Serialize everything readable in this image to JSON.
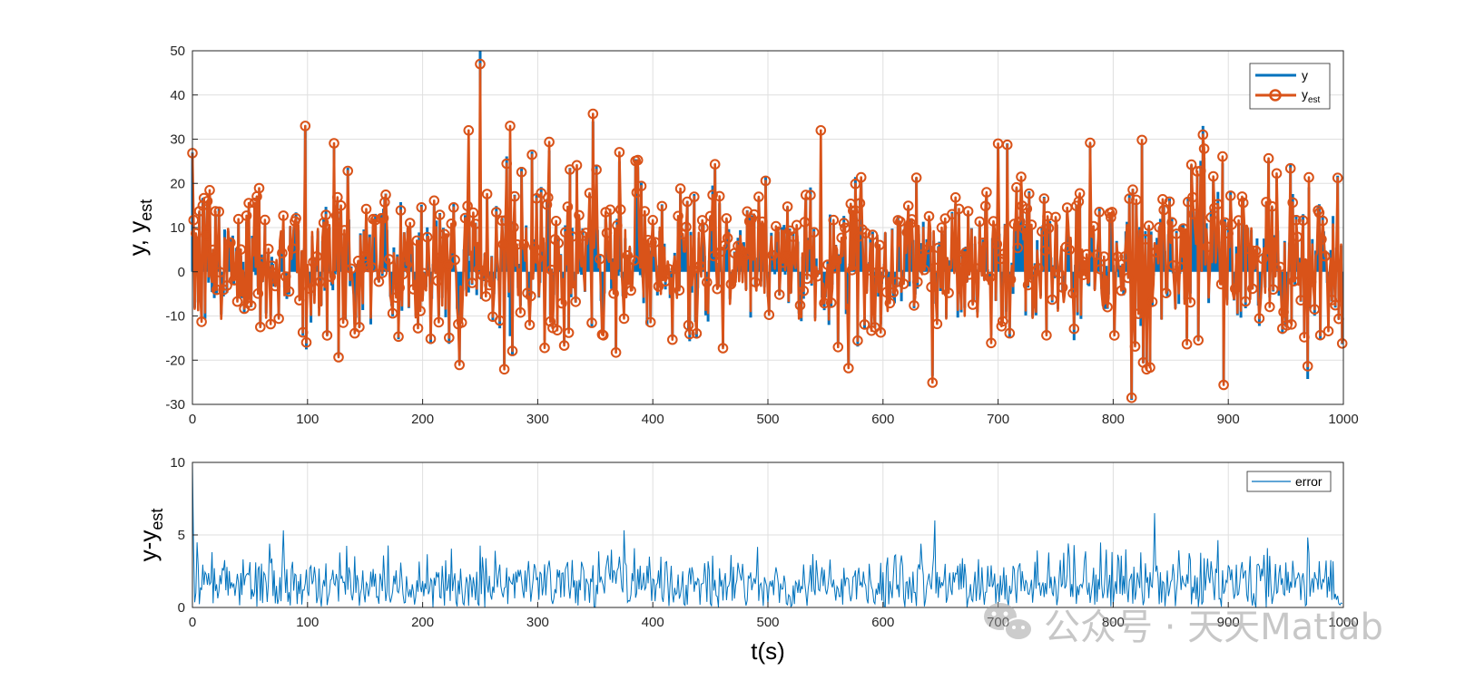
{
  "chart_data": [
    {
      "type": "line",
      "ylabel": "y, y",
      "ylabel_sub": "est",
      "xlim": [
        0,
        1000
      ],
      "ylim": [
        -30,
        50
      ],
      "xticks": [
        0,
        100,
        200,
        300,
        400,
        500,
        600,
        700,
        800,
        900,
        1000
      ],
      "yticks": [
        -30,
        -20,
        -10,
        0,
        10,
        20,
        30,
        40,
        50
      ],
      "grid": true,
      "legend_position": "top-right",
      "legend": [
        {
          "label": "y",
          "sub": ""
        },
        {
          "label": "y",
          "sub": "est"
        }
      ],
      "series": [
        {
          "name": "y",
          "color": "#0072BD",
          "style": "stem",
          "description": "noisy signal, mostly within -15..20, with spikes up to 50",
          "samples": 1000,
          "range": [
            -29,
            50
          ],
          "peaks": [
            {
              "x": 250,
              "y": 50
            },
            {
              "x": 348,
              "y": 34
            },
            {
              "x": 98,
              "y": 32
            },
            {
              "x": 700,
              "y": 28
            },
            {
              "x": 878,
              "y": 33
            }
          ]
        },
        {
          "name": "y_est",
          "color": "#D95319",
          "style": "stem-circle",
          "samples": 1000,
          "range": [
            -28,
            47
          ],
          "peaks": [
            {
              "x": 250,
              "y": 47
            },
            {
              "x": 240,
              "y": 32
            },
            {
              "x": 276,
              "y": 33
            },
            {
              "x": 546,
              "y": 32
            },
            {
              "x": 878,
              "y": 31
            }
          ]
        }
      ]
    },
    {
      "type": "line",
      "xlabel": "t(s)",
      "ylabel": "y-y",
      "ylabel_sub": "est",
      "xlim": [
        0,
        1000
      ],
      "ylim": [
        0,
        10
      ],
      "xticks": [
        0,
        100,
        200,
        300,
        400,
        500,
        600,
        700,
        800,
        900,
        1000
      ],
      "yticks": [
        0,
        5,
        10
      ],
      "grid": true,
      "legend_position": "top-right",
      "legend": [
        {
          "label": "error",
          "sub": ""
        }
      ],
      "series": [
        {
          "name": "error",
          "color": "#0072BD",
          "style": "line",
          "samples": 1000,
          "range": [
            0,
            10
          ],
          "peaks": [
            {
              "x": 0,
              "y": 10
            },
            {
              "x": 1,
              "y": 4
            },
            {
              "x": 836,
              "y": 6.5
            },
            {
              "x": 645,
              "y": 6
            }
          ]
        }
      ]
    }
  ],
  "watermark": {
    "text": "公众号 · 天天Matlab",
    "icon": "wechat-icon"
  }
}
